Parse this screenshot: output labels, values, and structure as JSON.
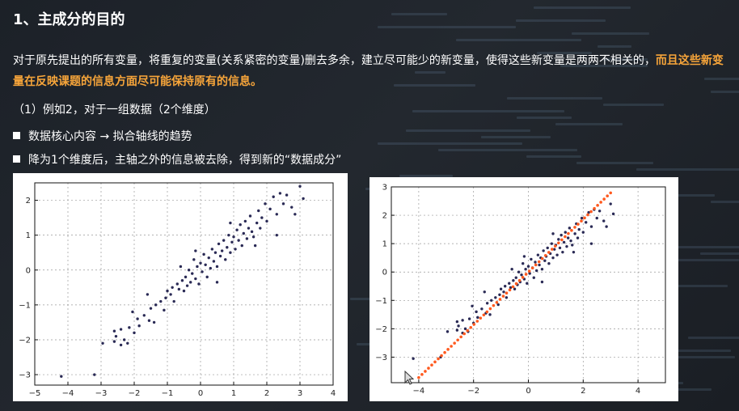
{
  "title": "1、主成分的目的",
  "paragraph": {
    "normal": "对于原先提出的所有变量，将重复的变量(关系紧密的变量)删去多余，建立尽可能少的新变量，使得这些新变量是两两不相关的，",
    "highlight": "而且这些新变量在反映课题的信息方面尽可能保持原有的信息。"
  },
  "example_line": "（1）例如2，对于一组数据（2个维度）",
  "bullets": [
    "数据核心内容 → 拟合轴线的趋势",
    "降为1个维度后，主轴之外的信息被去除，得到新的“数据成分”"
  ],
  "colors": {
    "highlight": "#f7a53a",
    "points": "#2a2a55",
    "projection": "#ff5a1f"
  },
  "chart_data": [
    {
      "type": "scatter",
      "xlim": [
        -5,
        4
      ],
      "ylim": [
        -3.3,
        2.5
      ],
      "xticks": [
        -5,
        -4,
        -3,
        -2,
        -1,
        0,
        1,
        2,
        3,
        4
      ],
      "yticks": [
        -3,
        -2,
        -1,
        0,
        1,
        2
      ],
      "grid": true,
      "series": [
        {
          "points": [
            [
              -4.2,
              -3.05
            ],
            [
              -3.2,
              -3.0
            ],
            [
              -2.95,
              -2.1
            ],
            [
              -2.6,
              -2.05
            ],
            [
              -2.55,
              -1.9
            ],
            [
              -2.4,
              -2.15
            ],
            [
              -2.3,
              -2.0
            ],
            [
              -2.2,
              -2.1
            ],
            [
              -2.6,
              -1.75
            ],
            [
              -2.4,
              -1.7
            ],
            [
              -2.15,
              -1.65
            ],
            [
              -2.0,
              -1.8
            ],
            [
              -1.9,
              -1.4
            ],
            [
              -2.05,
              -1.2
            ],
            [
              -1.85,
              -1.6
            ],
            [
              -1.7,
              -1.3
            ],
            [
              -1.55,
              -1.45
            ],
            [
              -1.5,
              -1.1
            ],
            [
              -1.35,
              -1.0
            ],
            [
              -1.2,
              -0.9
            ],
            [
              -1.1,
              -1.15
            ],
            [
              -1.05,
              -0.8
            ],
            [
              -1.0,
              -0.6
            ],
            [
              -0.9,
              -0.7
            ],
            [
              -0.85,
              -0.5
            ],
            [
              -0.8,
              -0.9
            ],
            [
              -0.7,
              -0.4
            ],
            [
              -0.65,
              -0.55
            ],
            [
              -0.55,
              -0.3
            ],
            [
              -0.5,
              -0.6
            ],
            [
              -0.45,
              -0.2
            ],
            [
              -0.4,
              -0.45
            ],
            [
              -0.35,
              0.0
            ],
            [
              -0.3,
              -0.35
            ],
            [
              -0.25,
              -0.1
            ],
            [
              -0.2,
              0.3
            ],
            [
              -0.15,
              -0.25
            ],
            [
              -0.1,
              0.1
            ],
            [
              -0.05,
              -0.4
            ],
            [
              0.0,
              0.2
            ],
            [
              0.05,
              -0.05
            ],
            [
              0.1,
              0.45
            ],
            [
              0.15,
              0.15
            ],
            [
              0.2,
              -0.2
            ],
            [
              0.25,
              0.35
            ],
            [
              0.3,
              0.05
            ],
            [
              0.35,
              0.6
            ],
            [
              0.4,
              0.25
            ],
            [
              0.45,
              0.5
            ],
            [
              0.5,
              0.1
            ],
            [
              0.55,
              0.75
            ],
            [
              0.6,
              0.4
            ],
            [
              0.65,
              0.55
            ],
            [
              0.7,
              0.85
            ],
            [
              0.75,
              0.3
            ],
            [
              0.8,
              0.65
            ],
            [
              0.85,
              1.0
            ],
            [
              0.9,
              0.5
            ],
            [
              0.95,
              0.8
            ],
            [
              1.0,
              0.95
            ],
            [
              1.05,
              0.6
            ],
            [
              1.1,
              1.15
            ],
            [
              1.15,
              0.85
            ],
            [
              1.2,
              1.3
            ],
            [
              1.25,
              0.7
            ],
            [
              1.3,
              1.05
            ],
            [
              1.35,
              1.4
            ],
            [
              1.4,
              0.9
            ],
            [
              1.45,
              1.2
            ],
            [
              1.5,
              1.55
            ],
            [
              1.55,
              1.1
            ],
            [
              1.6,
              0.95
            ],
            [
              1.7,
              1.35
            ],
            [
              1.75,
              1.7
            ],
            [
              1.8,
              1.2
            ],
            [
              1.85,
              1.5
            ],
            [
              1.95,
              1.9
            ],
            [
              2.0,
              1.4
            ],
            [
              2.1,
              1.75
            ],
            [
              2.2,
              2.1
            ],
            [
              2.3,
              1.6
            ],
            [
              2.4,
              2.2
            ],
            [
              2.5,
              1.9
            ],
            [
              2.6,
              2.15
            ],
            [
              2.75,
              1.8
            ],
            [
              2.3,
              1.0
            ],
            [
              1.65,
              0.7
            ],
            [
              -0.6,
              0.1
            ],
            [
              0.5,
              -0.35
            ],
            [
              -1.6,
              -0.7
            ],
            [
              2.85,
              1.6
            ],
            [
              3.0,
              2.4
            ],
            [
              3.1,
              2.05
            ],
            [
              0.9,
              1.35
            ],
            [
              -0.15,
              0.55
            ],
            [
              -1.4,
              -1.5
            ]
          ]
        }
      ]
    },
    {
      "type": "scatter",
      "xlim": [
        -5,
        5
      ],
      "ylim": [
        -3.9,
        3
      ],
      "xticks": [
        -4,
        -2,
        0,
        2,
        4
      ],
      "yticks": [
        -3,
        -2,
        -1,
        0,
        1,
        2,
        3
      ],
      "grid": true,
      "series": [
        {
          "points": [
            [
              -4.2,
              -3.05
            ],
            [
              -3.2,
              -3.0
            ],
            [
              -2.95,
              -2.1
            ],
            [
              -2.6,
              -2.05
            ],
            [
              -2.55,
              -1.9
            ],
            [
              -2.4,
              -2.15
            ],
            [
              -2.3,
              -2.0
            ],
            [
              -2.2,
              -2.1
            ],
            [
              -2.6,
              -1.75
            ],
            [
              -2.4,
              -1.7
            ],
            [
              -2.15,
              -1.65
            ],
            [
              -2.0,
              -1.8
            ],
            [
              -1.9,
              -1.4
            ],
            [
              -2.05,
              -1.2
            ],
            [
              -1.85,
              -1.6
            ],
            [
              -1.7,
              -1.3
            ],
            [
              -1.55,
              -1.45
            ],
            [
              -1.5,
              -1.1
            ],
            [
              -1.35,
              -1.0
            ],
            [
              -1.2,
              -0.9
            ],
            [
              -1.1,
              -1.15
            ],
            [
              -1.05,
              -0.8
            ],
            [
              -1.0,
              -0.6
            ],
            [
              -0.9,
              -0.7
            ],
            [
              -0.85,
              -0.5
            ],
            [
              -0.8,
              -0.9
            ],
            [
              -0.7,
              -0.4
            ],
            [
              -0.65,
              -0.55
            ],
            [
              -0.55,
              -0.3
            ],
            [
              -0.5,
              -0.6
            ],
            [
              -0.45,
              -0.2
            ],
            [
              -0.4,
              -0.45
            ],
            [
              -0.35,
              0.0
            ],
            [
              -0.3,
              -0.35
            ],
            [
              -0.25,
              -0.1
            ],
            [
              -0.2,
              0.3
            ],
            [
              -0.15,
              -0.25
            ],
            [
              -0.1,
              0.1
            ],
            [
              -0.05,
              -0.4
            ],
            [
              0.0,
              0.2
            ],
            [
              0.05,
              -0.05
            ],
            [
              0.1,
              0.45
            ],
            [
              0.15,
              0.15
            ],
            [
              0.2,
              -0.2
            ],
            [
              0.25,
              0.35
            ],
            [
              0.3,
              0.05
            ],
            [
              0.35,
              0.6
            ],
            [
              0.4,
              0.25
            ],
            [
              0.45,
              0.5
            ],
            [
              0.5,
              0.1
            ],
            [
              0.55,
              0.75
            ],
            [
              0.6,
              0.4
            ],
            [
              0.65,
              0.55
            ],
            [
              0.7,
              0.85
            ],
            [
              0.75,
              0.3
            ],
            [
              0.8,
              0.65
            ],
            [
              0.85,
              1.0
            ],
            [
              0.9,
              0.5
            ],
            [
              0.95,
              0.8
            ],
            [
              1.0,
              0.95
            ],
            [
              1.05,
              0.6
            ],
            [
              1.1,
              1.15
            ],
            [
              1.15,
              0.85
            ],
            [
              1.2,
              1.3
            ],
            [
              1.25,
              0.7
            ],
            [
              1.3,
              1.05
            ],
            [
              1.35,
              1.4
            ],
            [
              1.4,
              0.9
            ],
            [
              1.45,
              1.2
            ],
            [
              1.5,
              1.55
            ],
            [
              1.55,
              1.1
            ],
            [
              1.6,
              0.95
            ],
            [
              1.7,
              1.35
            ],
            [
              1.75,
              1.7
            ],
            [
              1.8,
              1.2
            ],
            [
              1.85,
              1.5
            ],
            [
              1.95,
              1.9
            ],
            [
              2.0,
              1.4
            ],
            [
              2.1,
              1.75
            ],
            [
              2.2,
              2.1
            ],
            [
              2.3,
              1.6
            ],
            [
              2.4,
              2.2
            ],
            [
              2.5,
              1.9
            ],
            [
              2.6,
              2.15
            ],
            [
              2.75,
              1.8
            ],
            [
              2.3,
              1.0
            ],
            [
              1.65,
              0.7
            ],
            [
              -0.6,
              0.1
            ],
            [
              0.5,
              -0.35
            ],
            [
              -1.6,
              -0.7
            ],
            [
              2.85,
              1.6
            ],
            [
              3.0,
              2.4
            ],
            [
              3.1,
              2.05
            ],
            [
              0.9,
              1.35
            ],
            [
              -0.15,
              0.55
            ],
            [
              -1.4,
              -1.5
            ]
          ]
        },
        {
          "projection_line": {
            "x_from": -4.0,
            "x_to": 3.0,
            "slope": 0.93,
            "count": 60
          }
        }
      ]
    }
  ]
}
